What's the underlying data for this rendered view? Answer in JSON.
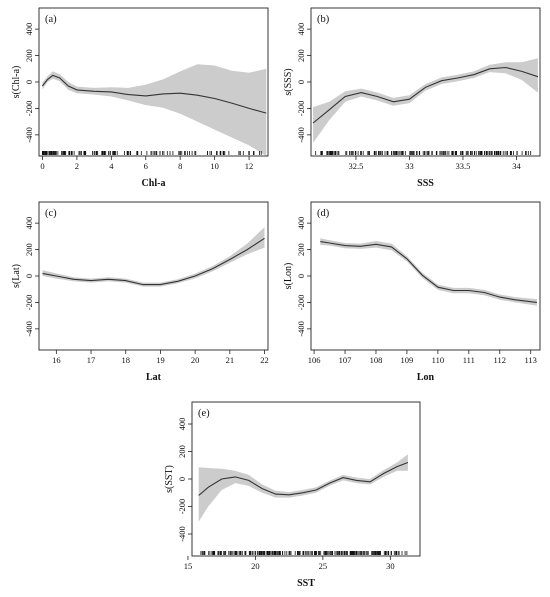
{
  "colors": {
    "band": "#cccccc",
    "line": "#333333",
    "axis": "#222222",
    "rug": "#111111"
  },
  "chart_data": [
    {
      "type": "line",
      "panel": "(a)",
      "xlabel": "Chl-a",
      "ylabel": "s(Chl-a)",
      "xlim": [
        -0.2,
        13.1
      ],
      "ylim": [
        -560,
        560
      ],
      "xticks": [
        0,
        2,
        4,
        6,
        8,
        10,
        12
      ],
      "yticks": [
        -400,
        -200,
        0,
        200,
        400
      ],
      "series": [
        {
          "role": "fit",
          "x": [
            0,
            0.3,
            0.6,
            1,
            1.5,
            2,
            3,
            4,
            5,
            6,
            7,
            8,
            9,
            10,
            11,
            12,
            13
          ],
          "y": [
            -30,
            20,
            50,
            30,
            -30,
            -60,
            -70,
            -75,
            -95,
            -105,
            -90,
            -85,
            -100,
            -125,
            -160,
            -200,
            -235
          ]
        },
        {
          "role": "upper",
          "x": [
            0,
            0.3,
            0.6,
            1,
            1.5,
            2,
            3,
            4,
            5,
            6,
            7,
            8,
            9,
            10,
            11,
            12,
            13
          ],
          "y": [
            -5,
            45,
            80,
            60,
            0,
            -35,
            -45,
            -40,
            -45,
            -20,
            20,
            80,
            135,
            125,
            85,
            70,
            100
          ]
        },
        {
          "role": "lower",
          "x": [
            0,
            0.3,
            0.6,
            1,
            1.5,
            2,
            3,
            4,
            5,
            6,
            7,
            8,
            9,
            10,
            11,
            12,
            13
          ],
          "y": [
            -55,
            0,
            25,
            5,
            -60,
            -85,
            -95,
            -110,
            -140,
            -175,
            -195,
            -240,
            -300,
            -360,
            -420,
            -480,
            -560
          ]
        }
      ]
    },
    {
      "type": "line",
      "panel": "(b)",
      "xlabel": "SSS",
      "ylabel": "s(SSS)",
      "xlim": [
        32.08,
        34.22
      ],
      "ylim": [
        -560,
        560
      ],
      "xticks": [
        32.5,
        33.0,
        33.5,
        34.0
      ],
      "yticks": [
        -400,
        -200,
        0,
        200,
        400
      ],
      "series": [
        {
          "role": "fit",
          "x": [
            32.1,
            32.25,
            32.4,
            32.55,
            32.7,
            32.85,
            33.0,
            33.15,
            33.3,
            33.45,
            33.6,
            33.75,
            33.9,
            34.05,
            34.2
          ],
          "y": [
            -310,
            -210,
            -110,
            -80,
            -110,
            -150,
            -130,
            -40,
            10,
            30,
            55,
            100,
            110,
            80,
            40
          ]
        },
        {
          "role": "upper",
          "x": [
            32.1,
            32.25,
            32.4,
            32.55,
            32.7,
            32.85,
            33.0,
            33.15,
            33.3,
            33.45,
            33.6,
            33.75,
            33.9,
            34.05,
            34.2
          ],
          "y": [
            -190,
            -150,
            -70,
            -50,
            -80,
            -120,
            -100,
            -15,
            35,
            55,
            80,
            130,
            150,
            150,
            180
          ]
        },
        {
          "role": "lower",
          "x": [
            32.1,
            32.25,
            32.4,
            32.55,
            32.7,
            32.85,
            33.0,
            33.15,
            33.3,
            33.45,
            33.6,
            33.75,
            33.9,
            34.05,
            34.2
          ],
          "y": [
            -460,
            -290,
            -150,
            -110,
            -140,
            -180,
            -160,
            -65,
            -15,
            5,
            30,
            75,
            65,
            15,
            -80
          ]
        }
      ]
    },
    {
      "type": "line",
      "panel": "(c)",
      "xlabel": "Lat",
      "ylabel": "s(Lat)",
      "xlim": [
        15.5,
        22.1
      ],
      "ylim": [
        -560,
        560
      ],
      "xticks": [
        16,
        17,
        18,
        19,
        20,
        21,
        22
      ],
      "yticks": [
        -400,
        -200,
        0,
        200,
        400
      ],
      "series": [
        {
          "role": "fit",
          "x": [
            15.6,
            16,
            16.5,
            17,
            17.5,
            18,
            18.5,
            19,
            19.5,
            20,
            20.5,
            21,
            21.5,
            22
          ],
          "y": [
            20,
            0,
            -25,
            -35,
            -25,
            -35,
            -65,
            -65,
            -40,
            0,
            55,
            125,
            200,
            285
          ]
        },
        {
          "role": "upper",
          "x": [
            15.6,
            16,
            16.5,
            17,
            17.5,
            18,
            18.5,
            19,
            19.5,
            20,
            20.5,
            21,
            21.5,
            22
          ],
          "y": [
            45,
            20,
            -10,
            -20,
            -10,
            -20,
            -50,
            -50,
            -25,
            18,
            75,
            150,
            245,
            370
          ]
        },
        {
          "role": "lower",
          "x": [
            15.6,
            16,
            16.5,
            17,
            17.5,
            18,
            18.5,
            19,
            19.5,
            20,
            20.5,
            21,
            21.5,
            22
          ],
          "y": [
            0,
            -20,
            -40,
            -50,
            -40,
            -50,
            -80,
            -80,
            -55,
            -18,
            35,
            100,
            165,
            215
          ]
        }
      ]
    },
    {
      "type": "line",
      "panel": "(d)",
      "xlabel": "Lon",
      "ylabel": "s(Lon)",
      "xlim": [
        105.9,
        113.3
      ],
      "ylim": [
        -560,
        560
      ],
      "xticks": [
        106,
        107,
        108,
        109,
        110,
        111,
        112,
        113
      ],
      "yticks": [
        -400,
        -200,
        0,
        200,
        400
      ],
      "series": [
        {
          "role": "fit",
          "x": [
            106.2,
            106.5,
            107,
            107.5,
            108,
            108.5,
            109,
            109.5,
            110,
            110.5,
            111,
            111.5,
            112,
            112.5,
            113.2
          ],
          "y": [
            260,
            250,
            230,
            225,
            240,
            220,
            130,
            5,
            -85,
            -110,
            -110,
            -125,
            -160,
            -180,
            -200
          ]
        },
        {
          "role": "upper",
          "x": [
            106.2,
            106.5,
            107,
            107.5,
            108,
            108.5,
            109,
            109.5,
            110,
            110.5,
            111,
            111.5,
            112,
            112.5,
            113.2
          ],
          "y": [
            285,
            270,
            250,
            245,
            265,
            245,
            150,
            25,
            -65,
            -90,
            -90,
            -105,
            -140,
            -160,
            -175
          ]
        },
        {
          "role": "lower",
          "x": [
            106.2,
            106.5,
            107,
            107.5,
            108,
            108.5,
            109,
            109.5,
            110,
            110.5,
            111,
            111.5,
            112,
            112.5,
            113.2
          ],
          "y": [
            235,
            230,
            210,
            205,
            215,
            195,
            110,
            -15,
            -105,
            -130,
            -130,
            -145,
            -180,
            -200,
            -225
          ]
        }
      ]
    },
    {
      "type": "line",
      "panel": "(e)",
      "xlabel": "SST",
      "ylabel": "s(SST)",
      "xlim": [
        15.3,
        32.2
      ],
      "ylim": [
        -560,
        560
      ],
      "xticks": [
        15,
        20,
        25,
        30
      ],
      "yticks": [
        -400,
        -200,
        0,
        200,
        400
      ],
      "series": [
        {
          "role": "fit",
          "x": [
            15.8,
            16.5,
            17.5,
            18.5,
            19.5,
            20.5,
            21.5,
            22.5,
            23.5,
            24.5,
            25.5,
            26.5,
            27.5,
            28.5,
            29.5,
            30.5,
            31.3
          ],
          "y": [
            -120,
            -60,
            0,
            15,
            -10,
            -70,
            -110,
            -115,
            -100,
            -80,
            -30,
            10,
            -10,
            -20,
            40,
            90,
            120
          ]
        },
        {
          "role": "upper",
          "x": [
            15.8,
            16.5,
            17.5,
            18.5,
            19.5,
            20.5,
            21.5,
            22.5,
            23.5,
            24.5,
            25.5,
            26.5,
            27.5,
            28.5,
            29.5,
            30.5,
            31.3
          ],
          "y": [
            85,
            80,
            75,
            60,
            30,
            -40,
            -85,
            -95,
            -80,
            -60,
            -12,
            30,
            10,
            0,
            65,
            120,
            180
          ]
        },
        {
          "role": "lower",
          "x": [
            15.8,
            16.5,
            17.5,
            18.5,
            19.5,
            20.5,
            21.5,
            22.5,
            23.5,
            24.5,
            25.5,
            26.5,
            27.5,
            28.5,
            29.5,
            30.5,
            31.3
          ],
          "y": [
            -310,
            -200,
            -80,
            -30,
            -50,
            -100,
            -135,
            -135,
            -120,
            -100,
            -48,
            -10,
            -30,
            -40,
            15,
            60,
            60
          ]
        }
      ]
    }
  ]
}
